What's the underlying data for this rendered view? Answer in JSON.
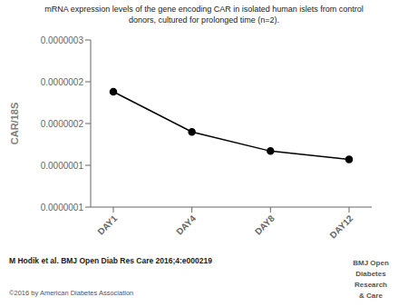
{
  "chart_data": {
    "type": "line",
    "title": "mRNA expression levels of the gene encoding CAR in isolated human islets from control\ndonors, cultured for prolonged time (n=2).",
    "categories": [
      "DAY1",
      "DAY4",
      "DAY8",
      "DAY12"
    ],
    "values": [
      2.38e-07,
      1.9e-07,
      1.67e-07,
      1.57e-07
    ],
    "ylabel": "CAR/18S",
    "ylim": [
      1e-07,
      3e-07
    ],
    "yticks": [
      {
        "value": 1e-07,
        "label": "0.0000001"
      },
      {
        "value": 1.5e-07,
        "label": "0.0000001"
      },
      {
        "value": 2e-07,
        "label": "0.0000002"
      },
      {
        "value": 2.5e-07,
        "label": "0.0000002"
      },
      {
        "value": 3e-07,
        "label": "0.0000003"
      }
    ],
    "color": "#000000",
    "marker": "circle",
    "grid": false,
    "annotations": [
      "M Hodik et al. BMJ Open Diab Res Care 2016;4:e000219",
      "©2016 by American Diabetes Association",
      "BMJ Open\nDiabetes\nResearch\n& Care"
    ]
  }
}
